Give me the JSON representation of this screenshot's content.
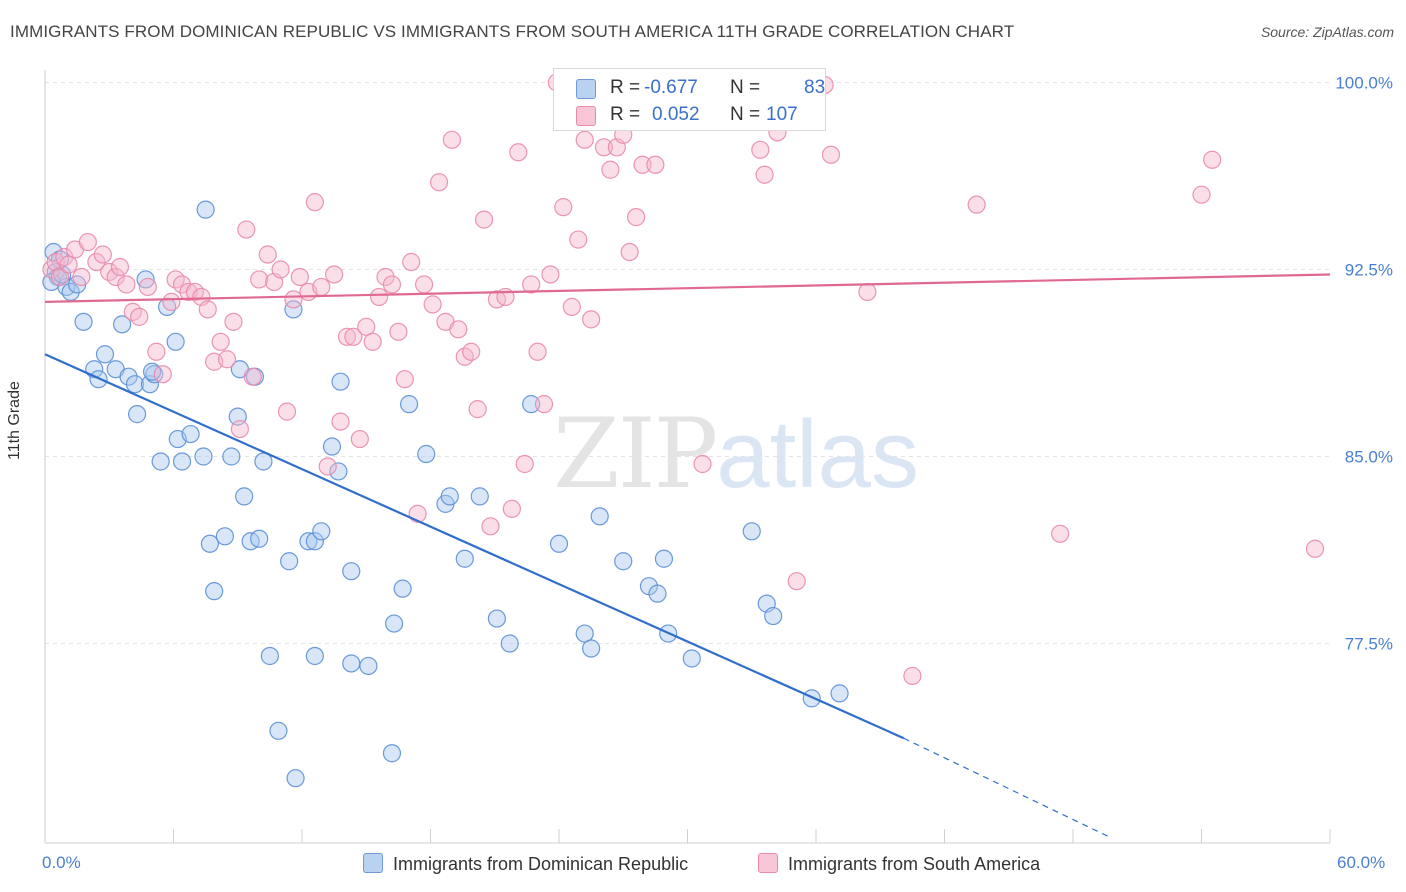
{
  "title": "IMMIGRANTS FROM DOMINICAN REPUBLIC VS IMMIGRANTS FROM SOUTH AMERICA 11TH GRADE CORRELATION CHART",
  "source": "Source: ZipAtlas.com",
  "watermark": {
    "zip": "ZIP",
    "atlas": "atlas"
  },
  "legend_top": {
    "rows": [
      {
        "r_label": "R =",
        "r_value": "-0.677",
        "n_label": "N =",
        "n_value": "83"
      },
      {
        "r_label": "R =",
        "r_value": "0.052",
        "n_label": "N =",
        "n_value": "107"
      }
    ]
  },
  "colors": {
    "blue_fill": "#a9c8ee",
    "blue_stroke": "#5b8fd6",
    "blue_line": "#2f6fcb",
    "pink_fill": "#f5b9cf",
    "pink_stroke": "#e98aab",
    "pink_line": "#e0698f",
    "tick_label": "#4a7fd0",
    "grid": "#e3e3e3"
  },
  "chart_data": {
    "type": "scatter",
    "title": "IMMIGRANTS FROM DOMINICAN REPUBLIC VS IMMIGRANTS FROM SOUTH AMERICA 11TH GRADE CORRELATION CHART",
    "xlabel": "",
    "ylabel": "11th Grade",
    "xlim": [
      0,
      60
    ],
    "ylim": [
      69.5,
      100.5
    ],
    "x_tick_labels": [
      "0.0%",
      "60.0%"
    ],
    "y_ticks": [
      77.5,
      85.0,
      92.5,
      100.0
    ],
    "y_tick_labels": [
      "77.5%",
      "85.0%",
      "92.5%",
      "100.0%"
    ],
    "grid": true,
    "legend_position": "bottom",
    "series": [
      {
        "name": "Immigrants from Dominican Republic",
        "color": "#5b8fd6",
        "trend": {
          "x": [
            0,
            40.1
          ],
          "y": [
            89.1,
            73.7
          ],
          "dashed_to": [
            49.8,
            69.7
          ]
        },
        "points": [
          [
            0.4,
            93.2
          ],
          [
            0.5,
            92.4
          ],
          [
            0.6,
            92.2
          ],
          [
            0.3,
            92.0
          ],
          [
            1.0,
            91.8
          ],
          [
            1.2,
            91.6
          ],
          [
            0.8,
            92.3
          ],
          [
            1.8,
            90.4
          ],
          [
            3.6,
            90.3
          ],
          [
            4.7,
            92.1
          ],
          [
            5.7,
            91.0
          ],
          [
            7.5,
            94.9
          ],
          [
            6.1,
            89.6
          ],
          [
            2.3,
            88.5
          ],
          [
            2.5,
            88.1
          ],
          [
            2.8,
            89.1
          ],
          [
            3.3,
            88.5
          ],
          [
            3.9,
            88.2
          ],
          [
            4.2,
            87.9
          ],
          [
            4.9,
            87.9
          ],
          [
            5.1,
            88.3
          ],
          [
            9.1,
            88.5
          ],
          [
            9.8,
            88.2
          ],
          [
            4.3,
            86.7
          ],
          [
            6.2,
            85.7
          ],
          [
            6.8,
            85.9
          ],
          [
            9.0,
            86.6
          ],
          [
            5.4,
            84.8
          ],
          [
            6.4,
            84.8
          ],
          [
            7.4,
            85.0
          ],
          [
            8.7,
            85.0
          ],
          [
            10.2,
            84.8
          ],
          [
            9.3,
            83.4
          ],
          [
            7.7,
            81.5
          ],
          [
            8.4,
            81.8
          ],
          [
            9.6,
            81.6
          ],
          [
            10.0,
            81.7
          ],
          [
            11.4,
            80.8
          ],
          [
            12.3,
            81.6
          ],
          [
            12.6,
            81.6
          ],
          [
            12.9,
            82.0
          ],
          [
            11.6,
            90.9
          ],
          [
            13.8,
            88.0
          ],
          [
            13.4,
            85.4
          ],
          [
            13.7,
            84.4
          ],
          [
            14.3,
            80.4
          ],
          [
            7.9,
            79.6
          ],
          [
            10.5,
            77.0
          ],
          [
            12.6,
            77.0
          ],
          [
            14.3,
            76.7
          ],
          [
            15.1,
            76.6
          ],
          [
            10.9,
            74.0
          ],
          [
            11.7,
            72.1
          ],
          [
            16.2,
            73.1
          ],
          [
            16.3,
            78.3
          ],
          [
            16.7,
            79.7
          ],
          [
            17.0,
            87.1
          ],
          [
            17.8,
            85.1
          ],
          [
            18.7,
            83.1
          ],
          [
            18.9,
            83.4
          ],
          [
            19.6,
            80.9
          ],
          [
            20.3,
            83.4
          ],
          [
            21.1,
            78.5
          ],
          [
            21.7,
            77.5
          ],
          [
            22.7,
            87.1
          ],
          [
            24.0,
            81.5
          ],
          [
            25.2,
            77.9
          ],
          [
            25.5,
            77.3
          ],
          [
            25.9,
            82.6
          ],
          [
            27.0,
            80.8
          ],
          [
            28.2,
            79.8
          ],
          [
            28.6,
            79.5
          ],
          [
            28.9,
            80.9
          ],
          [
            29.1,
            77.9
          ],
          [
            30.2,
            76.9
          ],
          [
            33.0,
            82.0
          ],
          [
            33.7,
            79.1
          ],
          [
            34.0,
            78.6
          ],
          [
            35.8,
            75.3
          ],
          [
            37.1,
            75.5
          ],
          [
            0.7,
            92.9
          ],
          [
            1.5,
            91.9
          ],
          [
            5.0,
            88.4
          ]
        ]
      },
      {
        "name": "Immigrants from South America",
        "color": "#e98aab",
        "trend": {
          "x": [
            0,
            60
          ],
          "y": [
            91.2,
            92.3
          ]
        },
        "points": [
          [
            0.3,
            92.5
          ],
          [
            0.5,
            92.8
          ],
          [
            0.7,
            92.2
          ],
          [
            0.9,
            93.0
          ],
          [
            1.1,
            92.7
          ],
          [
            1.4,
            93.3
          ],
          [
            1.7,
            92.2
          ],
          [
            2.0,
            93.6
          ],
          [
            2.4,
            92.8
          ],
          [
            2.7,
            93.1
          ],
          [
            3.0,
            92.4
          ],
          [
            3.3,
            92.2
          ],
          [
            3.5,
            92.6
          ],
          [
            3.8,
            91.9
          ],
          [
            4.1,
            90.8
          ],
          [
            4.4,
            90.6
          ],
          [
            4.8,
            91.8
          ],
          [
            5.2,
            89.2
          ],
          [
            5.5,
            88.3
          ],
          [
            5.9,
            91.2
          ],
          [
            6.1,
            92.1
          ],
          [
            6.4,
            91.9
          ],
          [
            6.7,
            91.6
          ],
          [
            7.0,
            91.6
          ],
          [
            7.3,
            91.4
          ],
          [
            7.6,
            90.9
          ],
          [
            7.9,
            88.8
          ],
          [
            8.2,
            89.6
          ],
          [
            8.5,
            88.9
          ],
          [
            8.8,
            90.4
          ],
          [
            9.1,
            86.1
          ],
          [
            9.4,
            94.1
          ],
          [
            9.7,
            88.2
          ],
          [
            10.0,
            92.1
          ],
          [
            10.4,
            93.1
          ],
          [
            10.7,
            92.0
          ],
          [
            11.0,
            92.5
          ],
          [
            11.3,
            86.8
          ],
          [
            11.6,
            91.3
          ],
          [
            11.9,
            92.2
          ],
          [
            12.3,
            91.6
          ],
          [
            12.6,
            95.2
          ],
          [
            12.9,
            91.8
          ],
          [
            13.2,
            84.6
          ],
          [
            13.5,
            92.3
          ],
          [
            13.8,
            86.4
          ],
          [
            14.1,
            89.8
          ],
          [
            14.4,
            89.8
          ],
          [
            14.7,
            85.7
          ],
          [
            15.0,
            90.2
          ],
          [
            15.3,
            89.6
          ],
          [
            15.6,
            91.4
          ],
          [
            15.9,
            92.2
          ],
          [
            16.2,
            91.9
          ],
          [
            16.5,
            90.0
          ],
          [
            16.8,
            88.1
          ],
          [
            17.1,
            92.8
          ],
          [
            17.4,
            82.7
          ],
          [
            17.7,
            91.9
          ],
          [
            18.1,
            91.1
          ],
          [
            18.4,
            96.0
          ],
          [
            18.7,
            90.4
          ],
          [
            19.0,
            97.7
          ],
          [
            19.3,
            90.1
          ],
          [
            19.6,
            89.0
          ],
          [
            19.9,
            89.2
          ],
          [
            20.2,
            86.9
          ],
          [
            20.5,
            94.5
          ],
          [
            20.8,
            82.2
          ],
          [
            21.1,
            91.3
          ],
          [
            21.5,
            91.4
          ],
          [
            21.8,
            82.9
          ],
          [
            22.1,
            97.2
          ],
          [
            22.4,
            84.7
          ],
          [
            22.7,
            91.9
          ],
          [
            23.0,
            89.2
          ],
          [
            23.3,
            87.1
          ],
          [
            23.6,
            92.3
          ],
          [
            23.9,
            100.0
          ],
          [
            24.2,
            95.0
          ],
          [
            24.6,
            91.0
          ],
          [
            24.9,
            93.7
          ],
          [
            25.2,
            97.7
          ],
          [
            25.5,
            90.5
          ],
          [
            25.8,
            98.8
          ],
          [
            26.1,
            97.4
          ],
          [
            26.4,
            96.5
          ],
          [
            26.7,
            97.4
          ],
          [
            27.0,
            97.9
          ],
          [
            27.3,
            93.2
          ],
          [
            27.6,
            94.6
          ],
          [
            27.9,
            96.7
          ],
          [
            28.2,
            98.9
          ],
          [
            28.5,
            96.7
          ],
          [
            30.7,
            84.7
          ],
          [
            32.1,
            98.9
          ],
          [
            33.4,
            97.3
          ],
          [
            33.6,
            96.3
          ],
          [
            34.2,
            98.0
          ],
          [
            35.1,
            80.0
          ],
          [
            36.4,
            99.9
          ],
          [
            36.7,
            97.1
          ],
          [
            38.4,
            91.6
          ],
          [
            40.5,
            76.2
          ],
          [
            43.5,
            95.1
          ],
          [
            47.4,
            81.9
          ],
          [
            54.0,
            95.5
          ],
          [
            54.5,
            96.9
          ],
          [
            59.3,
            81.3
          ]
        ]
      }
    ]
  },
  "bottom_legend": {
    "items": [
      {
        "label": "Immigrants from Dominican Republic"
      },
      {
        "label": "Immigrants from South America"
      }
    ]
  }
}
